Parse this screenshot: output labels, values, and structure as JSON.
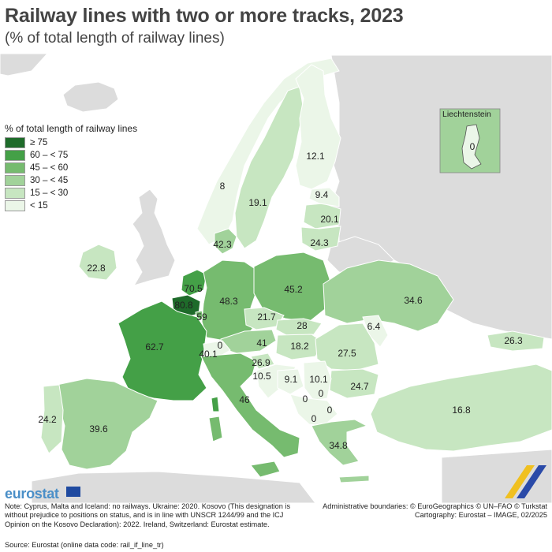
{
  "title": "Railway lines with two or more tracks, 2023",
  "subtitle": "(% of total length of railway lines)",
  "legend": {
    "title": "% of total length of railway lines",
    "items": [
      {
        "label": "≥ 75",
        "color": "#1e6b2a"
      },
      {
        "label": "60 – < 75",
        "color": "#44a047"
      },
      {
        "label": "45 – < 60",
        "color": "#76bb6f"
      },
      {
        "label": "30 – < 45",
        "color": "#a1d29a"
      },
      {
        "label": "15 – < 30",
        "color": "#c7e6c1"
      },
      {
        "label": "< 15",
        "color": "#ebf6e8"
      }
    ]
  },
  "inset": {
    "title": "Liechtenstein",
    "value": "0"
  },
  "countries": {
    "norway": "8",
    "sweden": "19.1",
    "finland": "12.1",
    "russia_area": "9.4",
    "latvia": "20.1",
    "lithuania": "24.3",
    "denmark": "42.3",
    "ireland": "22.8",
    "netherlands": "70.5",
    "belgium": "80.8",
    "luxembourg": "59",
    "germany": "48.3",
    "poland": "45.2",
    "ukraine": "34.6",
    "france": "62.7",
    "switzerland": "0",
    "austria": "41",
    "czechia": "21.7",
    "slovakia": "28",
    "hungary": "18.2",
    "moldova": "6.4",
    "romania": "27.5",
    "slovenia": "26.9",
    "croatia": "10.5",
    "bosnia": "9.1",
    "serbia": "10.1",
    "montenegro": "0",
    "kosovo": "0",
    "north_macedonia": "0",
    "albania": "0",
    "bulgaria": "24.7",
    "georgia": "26.3",
    "turkey": "16.8",
    "italy": "46",
    "liechtenstein_main": "0",
    "italy_north": "40.1",
    "portugal": "24.2",
    "spain": "39.6",
    "greece": "34.8"
  },
  "footer": {
    "logo": "eurostat",
    "note": "Note: Cyprus, Malta and Iceland: no railways. Ukraine: 2020. Kosovo (This designation is without prejudice to positions on status, and is in line with UNSCR 1244/99 and the ICJ Opinion on the Kosovo Declaration): 2022. Ireland, Switzerland: Eurostat estimate.",
    "source": "Source: Eurostat (online data code: rail_if_line_tr)",
    "credits_line1": "Administrative boundaries: © EuroGeographics © UN–FAO © Turkstat",
    "credits_line2": "Cartography: Eurostat – IMAGE, 02/2025"
  }
}
